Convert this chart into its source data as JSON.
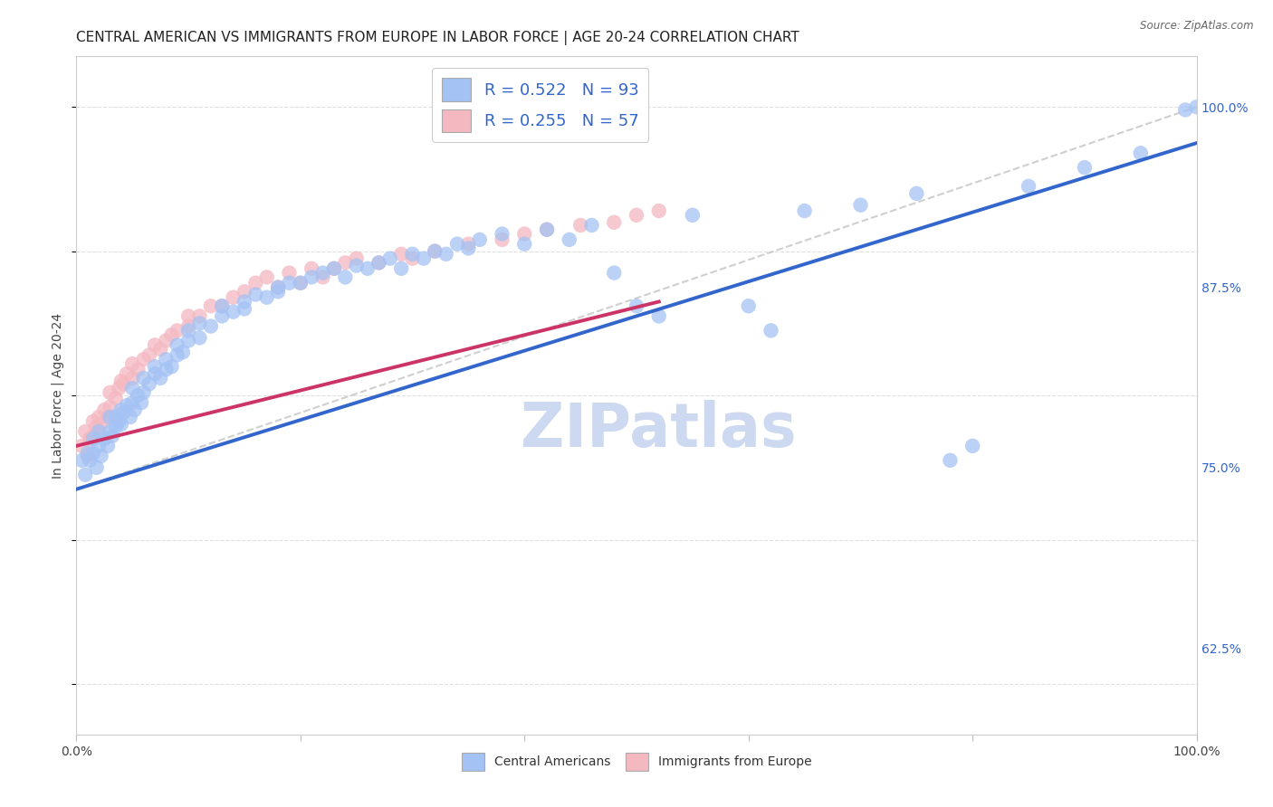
{
  "title": "CENTRAL AMERICAN VS IMMIGRANTS FROM EUROPE IN LABOR FORCE | AGE 20-24 CORRELATION CHART",
  "source": "Source: ZipAtlas.com",
  "ylabel": "In Labor Force | Age 20-24",
  "xlim": [
    0.0,
    1.0
  ],
  "ylim": [
    0.565,
    1.035
  ],
  "x_ticks": [
    0.0,
    0.2,
    0.4,
    0.6,
    0.8,
    1.0
  ],
  "x_tick_labels": [
    "0.0%",
    "",
    "",
    "",
    "",
    "100.0%"
  ],
  "y_tick_labels_right": [
    "100.0%",
    "87.5%",
    "75.0%",
    "62.5%"
  ],
  "y_tick_vals_right": [
    1.0,
    0.875,
    0.75,
    0.625
  ],
  "legend_R1": "R = 0.522",
  "legend_N1": "N = 93",
  "legend_R2": "R = 0.255",
  "legend_N2": "N = 57",
  "color_blue": "#a4c2f4",
  "color_pink": "#f4b8c1",
  "color_trendline_blue": "#3366cc",
  "color_trendline_pink": "#cc3366",
  "color_trendline_dashed": "#bbbbbb",
  "watermark": "ZIPatlas",
  "blue_scatter_x": [
    0.005,
    0.008,
    0.01,
    0.012,
    0.015,
    0.015,
    0.018,
    0.02,
    0.02,
    0.022,
    0.025,
    0.028,
    0.03,
    0.03,
    0.032,
    0.035,
    0.035,
    0.038,
    0.04,
    0.04,
    0.042,
    0.045,
    0.048,
    0.05,
    0.05,
    0.052,
    0.055,
    0.058,
    0.06,
    0.06,
    0.065,
    0.07,
    0.07,
    0.075,
    0.08,
    0.08,
    0.085,
    0.09,
    0.09,
    0.095,
    0.1,
    0.1,
    0.11,
    0.11,
    0.12,
    0.13,
    0.13,
    0.14,
    0.15,
    0.15,
    0.16,
    0.17,
    0.18,
    0.18,
    0.19,
    0.2,
    0.21,
    0.22,
    0.23,
    0.24,
    0.25,
    0.26,
    0.27,
    0.28,
    0.29,
    0.3,
    0.31,
    0.32,
    0.33,
    0.34,
    0.35,
    0.36,
    0.38,
    0.4,
    0.42,
    0.44,
    0.46,
    0.48,
    0.5,
    0.52,
    0.55,
    0.6,
    0.62,
    0.65,
    0.7,
    0.75,
    0.78,
    0.8,
    0.85,
    0.9,
    0.95,
    0.99,
    1.0
  ],
  "blue_scatter_y": [
    0.755,
    0.745,
    0.76,
    0.755,
    0.76,
    0.77,
    0.75,
    0.765,
    0.775,
    0.758,
    0.77,
    0.765,
    0.775,
    0.785,
    0.772,
    0.778,
    0.785,
    0.782,
    0.79,
    0.78,
    0.788,
    0.793,
    0.785,
    0.795,
    0.805,
    0.79,
    0.8,
    0.795,
    0.802,
    0.812,
    0.808,
    0.815,
    0.82,
    0.812,
    0.818,
    0.825,
    0.82,
    0.828,
    0.835,
    0.83,
    0.838,
    0.845,
    0.84,
    0.85,
    0.848,
    0.855,
    0.862,
    0.858,
    0.865,
    0.86,
    0.87,
    0.868,
    0.875,
    0.872,
    0.878,
    0.878,
    0.882,
    0.885,
    0.888,
    0.882,
    0.89,
    0.888,
    0.892,
    0.895,
    0.888,
    0.898,
    0.895,
    0.9,
    0.898,
    0.905,
    0.902,
    0.908,
    0.912,
    0.905,
    0.915,
    0.908,
    0.918,
    0.885,
    0.862,
    0.855,
    0.925,
    0.862,
    0.845,
    0.928,
    0.932,
    0.94,
    0.755,
    0.765,
    0.945,
    0.958,
    0.968,
    0.998,
    1.0
  ],
  "pink_scatter_x": [
    0.005,
    0.008,
    0.01,
    0.012,
    0.015,
    0.015,
    0.018,
    0.02,
    0.022,
    0.025,
    0.028,
    0.03,
    0.03,
    0.035,
    0.038,
    0.04,
    0.042,
    0.045,
    0.05,
    0.05,
    0.055,
    0.06,
    0.065,
    0.07,
    0.075,
    0.08,
    0.085,
    0.09,
    0.1,
    0.1,
    0.11,
    0.12,
    0.13,
    0.14,
    0.15,
    0.16,
    0.17,
    0.18,
    0.19,
    0.2,
    0.21,
    0.22,
    0.23,
    0.24,
    0.25,
    0.27,
    0.29,
    0.3,
    0.32,
    0.35,
    0.38,
    0.4,
    0.42,
    0.45,
    0.48,
    0.5,
    0.52
  ],
  "pink_scatter_y": [
    0.765,
    0.775,
    0.758,
    0.77,
    0.772,
    0.782,
    0.778,
    0.785,
    0.78,
    0.79,
    0.785,
    0.792,
    0.802,
    0.798,
    0.805,
    0.81,
    0.808,
    0.815,
    0.812,
    0.822,
    0.818,
    0.825,
    0.828,
    0.835,
    0.832,
    0.838,
    0.842,
    0.845,
    0.848,
    0.855,
    0.855,
    0.862,
    0.862,
    0.868,
    0.872,
    0.878,
    0.882,
    0.875,
    0.885,
    0.878,
    0.888,
    0.882,
    0.888,
    0.892,
    0.895,
    0.892,
    0.898,
    0.895,
    0.9,
    0.905,
    0.908,
    0.912,
    0.915,
    0.918,
    0.92,
    0.925,
    0.928
  ],
  "blue_trend_x": [
    0.0,
    1.0
  ],
  "blue_trend_y": [
    0.735,
    0.975
  ],
  "pink_trend_x": [
    0.0,
    0.52
  ],
  "pink_trend_y": [
    0.765,
    0.865
  ],
  "dashed_line_x": [
    0.0,
    1.0
  ],
  "dashed_line_y": [
    0.735,
    1.0
  ],
  "title_fontsize": 11,
  "axis_label_fontsize": 10,
  "tick_fontsize": 10,
  "legend_fontsize": 13,
  "watermark_fontsize": 48,
  "watermark_color": "#ccd9f0",
  "background_color": "#ffffff",
  "grid_color": "#dddddd"
}
